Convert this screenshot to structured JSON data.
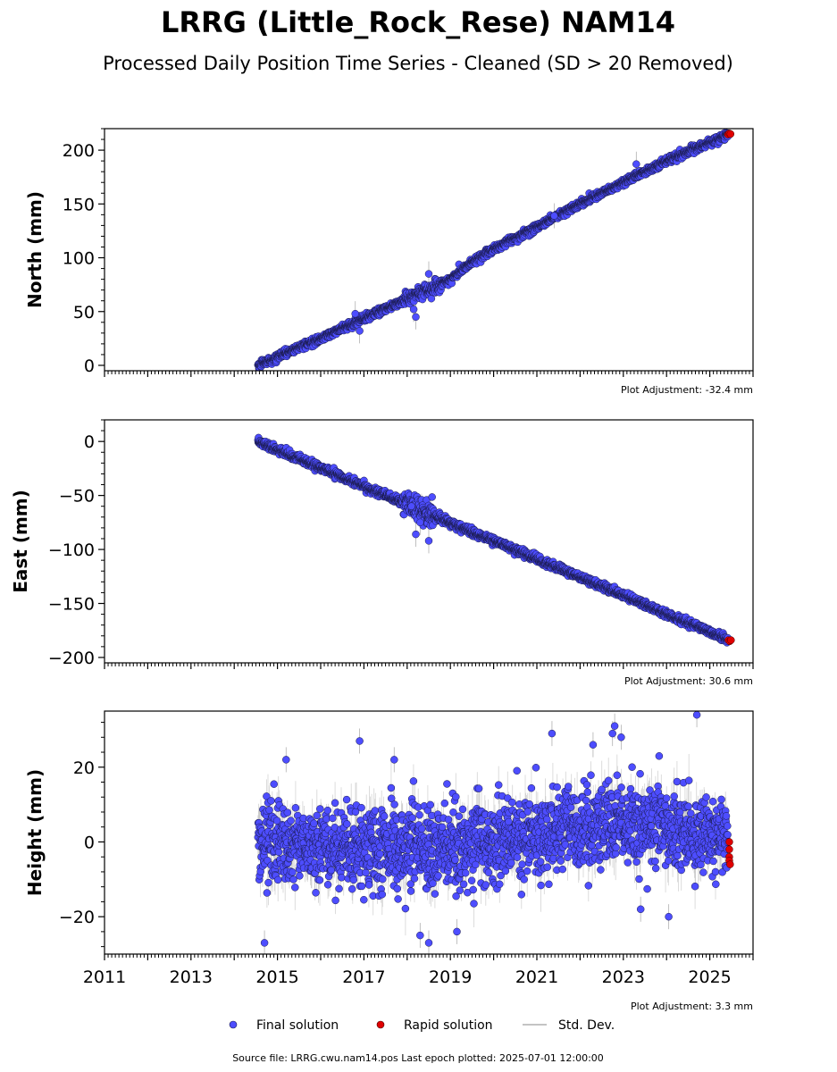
{
  "header": {
    "title": "LRRG (Little_Rock_Rese) NAM14",
    "subtitle": "Processed Daily Position Time Series - Cleaned (SD > 20 Removed)"
  },
  "colors": {
    "final": "#4d4dff",
    "rapid": "#e00000",
    "std": "#b0b0b0",
    "marker_edge": "#1a1a4a"
  },
  "chart_data": [
    {
      "type": "scatter",
      "ylabel": "North (mm)",
      "adjustment": "Plot Adjustment: -32.4 mm",
      "xlim": [
        2011.0,
        2026.0
      ],
      "ylim": [
        -5,
        220
      ],
      "yticks": [
        0,
        50,
        100,
        150,
        200
      ],
      "ytick_labels": [
        "0",
        "50",
        "100",
        "150",
        "200"
      ],
      "trend": [
        {
          "x": 2014.55,
          "y": 0
        },
        {
          "x": 2016.0,
          "y": 25
        },
        {
          "x": 2018.0,
          "y": 62
        },
        {
          "x": 2019.0,
          "y": 80
        },
        {
          "x": 2019.5,
          "y": 96
        },
        {
          "x": 2020.0,
          "y": 108
        },
        {
          "x": 2022.0,
          "y": 150
        },
        {
          "x": 2024.0,
          "y": 190
        },
        {
          "x": 2025.45,
          "y": 215
        }
      ],
      "scatter_sd": 1.6,
      "outliers": [
        {
          "x": 2016.8,
          "y": 48
        },
        {
          "x": 2016.9,
          "y": 32
        },
        {
          "x": 2018.2,
          "y": 45
        },
        {
          "x": 2018.15,
          "y": 52
        },
        {
          "x": 2018.5,
          "y": 85
        },
        {
          "x": 2021.4,
          "y": 139
        },
        {
          "x": 2023.3,
          "y": 187
        }
      ],
      "rapid": [
        {
          "x": 2025.42,
          "y": 214.5
        },
        {
          "x": 2025.45,
          "y": 215.5
        },
        {
          "x": 2025.48,
          "y": 215
        }
      ]
    },
    {
      "type": "scatter",
      "ylabel": "East (mm)",
      "adjustment": "Plot Adjustment: 30.6 mm",
      "xlim": [
        2011.0,
        2026.0
      ],
      "ylim": [
        -205,
        20
      ],
      "yticks": [
        0,
        -50,
        -100,
        -150,
        -200
      ],
      "ytick_labels": [
        "0",
        "−50",
        "−100",
        "−150",
        "−200"
      ],
      "trend": [
        {
          "x": 2014.55,
          "y": 0
        },
        {
          "x": 2025.45,
          "y": -184
        }
      ],
      "scatter_sd": 1.6,
      "outliers": [
        {
          "x": 2018.2,
          "y": -86
        },
        {
          "x": 2018.5,
          "y": -92
        },
        {
          "x": 2018.1,
          "y": -60
        },
        {
          "x": 2018.3,
          "y": -75
        }
      ],
      "rapid": [
        {
          "x": 2025.43,
          "y": -184
        },
        {
          "x": 2025.46,
          "y": -185
        },
        {
          "x": 2025.49,
          "y": -184
        }
      ]
    },
    {
      "type": "scatter",
      "ylabel": "Height (mm)",
      "adjustment": "Plot Adjustment: 3.3 mm",
      "xlim": [
        2011.0,
        2026.0
      ],
      "ylim": [
        -30,
        35
      ],
      "yticks": [
        20,
        0,
        -20
      ],
      "ytick_labels": [
        "20",
        "0",
        "−20"
      ],
      "xticks": [
        2011,
        2013,
        2015,
        2017,
        2019,
        2021,
        2023,
        2025
      ],
      "xtick_labels": [
        "2011",
        "2013",
        "2015",
        "2017",
        "2019",
        "2021",
        "2023",
        "2025"
      ],
      "trend": [
        {
          "x": 2014.55,
          "y": 0
        },
        {
          "x": 2018.5,
          "y": -2
        },
        {
          "x": 2019.5,
          "y": -1
        },
        {
          "x": 2022.0,
          "y": 4
        },
        {
          "x": 2023.0,
          "y": 5
        },
        {
          "x": 2025.45,
          "y": 1
        }
      ],
      "scatter_sd": 5.5,
      "outliers": [
        {
          "x": 2014.7,
          "y": -27
        },
        {
          "x": 2015.2,
          "y": 22
        },
        {
          "x": 2016.9,
          "y": 27
        },
        {
          "x": 2017.7,
          "y": 22
        },
        {
          "x": 2018.3,
          "y": -25
        },
        {
          "x": 2018.5,
          "y": -27
        },
        {
          "x": 2019.15,
          "y": -24
        },
        {
          "x": 2021.35,
          "y": 29
        },
        {
          "x": 2022.3,
          "y": 26
        },
        {
          "x": 2022.75,
          "y": 29
        },
        {
          "x": 2022.8,
          "y": 31
        },
        {
          "x": 2022.95,
          "y": 28
        },
        {
          "x": 2023.4,
          "y": -18
        },
        {
          "x": 2024.05,
          "y": -20
        },
        {
          "x": 2024.7,
          "y": 34
        }
      ],
      "rapid": [
        {
          "x": 2025.45,
          "y": 0
        },
        {
          "x": 2025.45,
          "y": -2
        },
        {
          "x": 2025.45,
          "y": -4
        },
        {
          "x": 2025.45,
          "y": -5
        },
        {
          "x": 2025.47,
          "y": -6
        }
      ]
    }
  ],
  "legend": {
    "final": "Final solution",
    "rapid": "Rapid solution",
    "std": "Std. Dev."
  },
  "footer": {
    "source": "Source file: LRRG.cwu.nam14.pos  Last epoch plotted: 2025-07-01 12:00:00"
  }
}
